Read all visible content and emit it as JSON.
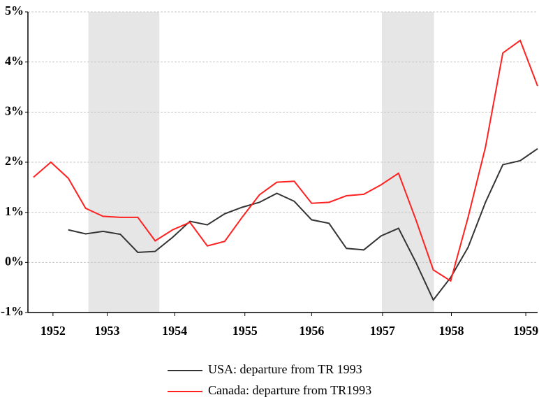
{
  "chart_data": {
    "type": "line",
    "x": [
      1951.75,
      1952.0,
      1952.25,
      1952.5,
      1952.75,
      1953.0,
      1953.25,
      1953.5,
      1953.75,
      1954.0,
      1954.25,
      1954.5,
      1954.75,
      1955.0,
      1955.25,
      1955.5,
      1955.75,
      1956.0,
      1956.25,
      1956.5,
      1956.75,
      1957.0,
      1957.25,
      1957.5,
      1957.75,
      1958.0,
      1958.25,
      1958.5,
      1958.75,
      1959.0
    ],
    "series": [
      {
        "name": "USA: departure from TR 1993",
        "color": "#333333",
        "values": [
          null,
          null,
          0.65,
          0.57,
          0.62,
          0.56,
          0.2,
          0.22,
          0.5,
          0.82,
          0.75,
          0.97,
          1.1,
          1.2,
          1.38,
          1.22,
          0.85,
          0.78,
          0.28,
          0.25,
          0.53,
          0.68,
          0.0,
          -0.75,
          -0.3,
          0.3,
          1.2,
          1.95,
          2.03,
          2.27
        ]
      },
      {
        "name": "Canada: departure from TR1993",
        "color": "#ff2020",
        "values": [
          1.7,
          2.0,
          1.68,
          1.08,
          0.92,
          0.9,
          0.9,
          0.43,
          0.65,
          0.8,
          0.33,
          0.42,
          0.9,
          1.35,
          1.6,
          1.62,
          1.18,
          1.2,
          1.33,
          1.36,
          1.55,
          1.78,
          0.85,
          -0.15,
          -0.37,
          0.9,
          2.3,
          4.18,
          4.43,
          3.52
        ]
      }
    ],
    "shaded_regions": [
      [
        1952.54,
        1953.56
      ],
      [
        1956.76,
        1957.51
      ]
    ],
    "xlim": [
      1951.67,
      1959.0
    ],
    "xticks": [
      {
        "value": 1952.03,
        "label": "1952"
      },
      {
        "value": 1952.81,
        "label": "1953"
      },
      {
        "value": 1953.78,
        "label": "1954"
      },
      {
        "value": 1954.79,
        "label": "1955"
      },
      {
        "value": 1955.75,
        "label": "1956"
      },
      {
        "value": 1956.77,
        "label": "1957"
      },
      {
        "value": 1957.76,
        "label": "1958"
      },
      {
        "value": 1958.83,
        "label": "1959"
      }
    ],
    "ylim": [
      -1,
      5
    ],
    "yticks": [
      {
        "value": -1,
        "label": "-1%"
      },
      {
        "value": 0,
        "label": "0%"
      },
      {
        "value": 1,
        "label": "1%"
      },
      {
        "value": 2,
        "label": "2%"
      },
      {
        "value": 3,
        "label": "3%"
      },
      {
        "value": 4,
        "label": "4%"
      },
      {
        "value": 5,
        "label": "5%"
      }
    ],
    "grid": true,
    "legend": "bottom"
  }
}
